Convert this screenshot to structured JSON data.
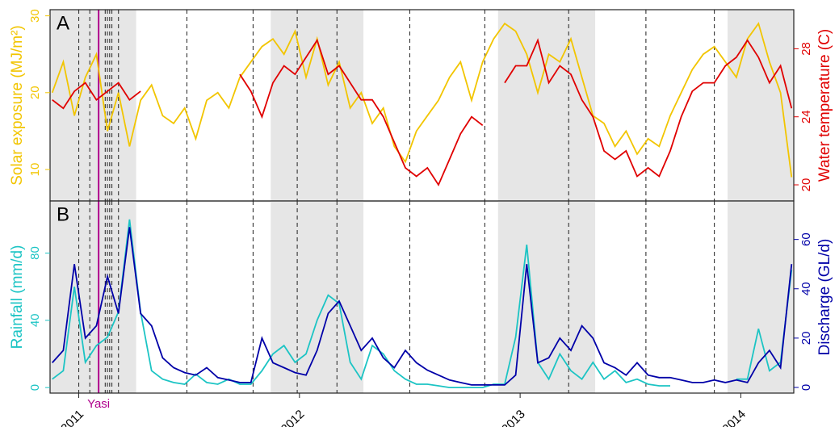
{
  "chart_data": [
    {
      "type": "line",
      "panel_label": "A",
      "xlim": [
        2010.87,
        2014.24
      ],
      "x": [
        2010.88,
        2010.93,
        2010.98,
        2011.03,
        2011.08,
        2011.13,
        2011.18,
        2011.23,
        2011.28,
        2011.33,
        2011.38,
        2011.43,
        2011.48,
        2011.53,
        2011.58,
        2011.63,
        2011.68,
        2011.73,
        2011.78,
        2011.83,
        2011.88,
        2011.93,
        2011.98,
        2012.03,
        2012.08,
        2012.13,
        2012.18,
        2012.23,
        2012.28,
        2012.33,
        2012.38,
        2012.43,
        2012.48,
        2012.53,
        2012.58,
        2012.63,
        2012.68,
        2012.73,
        2012.78,
        2012.83,
        2012.88,
        2012.93,
        2012.98,
        2013.03,
        2013.08,
        2013.13,
        2013.18,
        2013.23,
        2013.28,
        2013.33,
        2013.38,
        2013.43,
        2013.48,
        2013.53,
        2013.58,
        2013.63,
        2013.68,
        2013.73,
        2013.78,
        2013.83,
        2013.88,
        2013.93,
        2013.98,
        2014.03,
        2014.08,
        2014.13,
        2014.18,
        2014.23
      ],
      "ylim": [
        5.9,
        30.8
      ],
      "yticks": [
        10,
        20,
        30
      ],
      "ylabel": "Solar exposure (MJ/m²)",
      "ycolor": "#f2c500",
      "y2lim": [
        19.05,
        30.3
      ],
      "y2ticks": [
        20,
        24,
        28
      ],
      "y2label": "Water temperature (C)",
      "y2color": "#e00000",
      "shaded_periods": [
        [
          2010.87,
          2011.26
        ],
        [
          2011.87,
          2012.29
        ],
        [
          2012.9,
          2013.34
        ],
        [
          2013.94,
          2014.24
        ]
      ],
      "dashed_lines": [
        2011.0,
        2011.05,
        2011.12,
        2011.13,
        2011.14,
        2011.15,
        2011.18,
        2011.49,
        2011.79,
        2011.99,
        2012.17,
        2012.5,
        2012.84,
        2013.22,
        2013.57,
        2013.88
      ],
      "event_line": 2011.09,
      "series": [
        {
          "name": "Solar exposure",
          "color": "#f2c500",
          "values": [
            20,
            24,
            17,
            22,
            25,
            15,
            20,
            13,
            19,
            21,
            17,
            16,
            18,
            14,
            19,
            20,
            18,
            22,
            24,
            26,
            27,
            25,
            28,
            22,
            27,
            21,
            24,
            18,
            20,
            16,
            18,
            13,
            11,
            15,
            17,
            19,
            22,
            24,
            19,
            24,
            27,
            29,
            28,
            25,
            20,
            25,
            24,
            27,
            22,
            17,
            16,
            13,
            15,
            12,
            14,
            13,
            17,
            20,
            23,
            25,
            26,
            24,
            22,
            27,
            29,
            24,
            20,
            9
          ]
        },
        {
          "name": "Water temperature",
          "color": "#e00000",
          "axis": "y2",
          "values": [
            25,
            24.5,
            25.5,
            26,
            25,
            25.5,
            26,
            25,
            25.5,
            null,
            null,
            null,
            null,
            null,
            null,
            null,
            null,
            26.5,
            25.5,
            24,
            26,
            27,
            26.5,
            27.5,
            28.5,
            26.5,
            27,
            26,
            25,
            25,
            24,
            22.5,
            21,
            20.5,
            21,
            20,
            21.5,
            23,
            24,
            23.5,
            null,
            26,
            27,
            27,
            28.5,
            26,
            27,
            26.5,
            25,
            24,
            22,
            21.5,
            22,
            20.5,
            21,
            20.5,
            22,
            24,
            25.5,
            26,
            26,
            27,
            27.5,
            28.5,
            27.5,
            26,
            27,
            24.5
          ]
        }
      ]
    },
    {
      "type": "line",
      "panel_label": "B",
      "xlim": [
        2010.87,
        2014.24
      ],
      "xticks": [
        2011,
        2012,
        2013,
        2014
      ],
      "x": [
        2010.88,
        2010.93,
        2010.98,
        2011.03,
        2011.08,
        2011.13,
        2011.18,
        2011.23,
        2011.28,
        2011.33,
        2011.38,
        2011.43,
        2011.48,
        2011.53,
        2011.58,
        2011.63,
        2011.68,
        2011.73,
        2011.78,
        2011.83,
        2011.88,
        2011.93,
        2011.98,
        2012.03,
        2012.08,
        2012.13,
        2012.18,
        2012.23,
        2012.28,
        2012.33,
        2012.38,
        2012.43,
        2012.48,
        2012.53,
        2012.58,
        2012.63,
        2012.68,
        2012.73,
        2012.78,
        2012.83,
        2012.88,
        2012.93,
        2012.98,
        2013.03,
        2013.08,
        2013.13,
        2013.18,
        2013.23,
        2013.28,
        2013.33,
        2013.38,
        2013.43,
        2013.48,
        2013.53,
        2013.58,
        2013.63,
        2013.68,
        2013.73,
        2013.78,
        2013.83,
        2013.88,
        2013.93,
        2013.98,
        2014.03,
        2014.08,
        2014.13,
        2014.18,
        2014.23
      ],
      "ylim": [
        -3.3,
        111
      ],
      "yticks": [
        0,
        40,
        80
      ],
      "ylabel": "Rainfall (mm/d)",
      "ycolor": "#1cc4c4",
      "y2lim": [
        -2.3,
        75.6
      ],
      "y2ticks": [
        0,
        20,
        40,
        60
      ],
      "y2label": "Discharge (GL/d)",
      "y2color": "#0000a8",
      "shaded_periods": [
        [
          2010.87,
          2011.26
        ],
        [
          2011.87,
          2012.29
        ],
        [
          2012.9,
          2013.34
        ],
        [
          2013.94,
          2014.24
        ]
      ],
      "dashed_lines": [
        2011.0,
        2011.05,
        2011.12,
        2011.13,
        2011.14,
        2011.15,
        2011.18,
        2011.49,
        2011.79,
        2011.99,
        2012.17,
        2012.5,
        2012.84,
        2013.22,
        2013.57,
        2013.88
      ],
      "event_line": 2011.09,
      "event_label": "Yasi",
      "series": [
        {
          "name": "Rainfall",
          "color": "#1cc4c4",
          "values": [
            5,
            10,
            60,
            15,
            25,
            30,
            45,
            100,
            45,
            10,
            5,
            3,
            2,
            8,
            3,
            2,
            5,
            2,
            2,
            10,
            20,
            25,
            15,
            20,
            40,
            55,
            50,
            15,
            5,
            25,
            20,
            10,
            5,
            2,
            2,
            1,
            0,
            0,
            0,
            0,
            2,
            2,
            30,
            85,
            15,
            5,
            20,
            10,
            5,
            15,
            5,
            10,
            3,
            5,
            2,
            1,
            1,
            null,
            null,
            null,
            null,
            null,
            5,
            5,
            35,
            10,
            15,
            70
          ]
        },
        {
          "name": "Discharge",
          "color": "#0000a8",
          "axis": "y2",
          "values": [
            10,
            15,
            50,
            20,
            25,
            45,
            30,
            65,
            30,
            25,
            12,
            8,
            6,
            5,
            8,
            4,
            3,
            2,
            2,
            20,
            10,
            8,
            6,
            5,
            15,
            30,
            35,
            25,
            15,
            20,
            12,
            8,
            15,
            10,
            7,
            5,
            3,
            2,
            1,
            1,
            1,
            1,
            5,
            50,
            10,
            12,
            20,
            15,
            25,
            20,
            10,
            8,
            5,
            10,
            5,
            4,
            4,
            3,
            2,
            2,
            3,
            2,
            3,
            2,
            10,
            15,
            8,
            50
          ]
        }
      ]
    }
  ]
}
